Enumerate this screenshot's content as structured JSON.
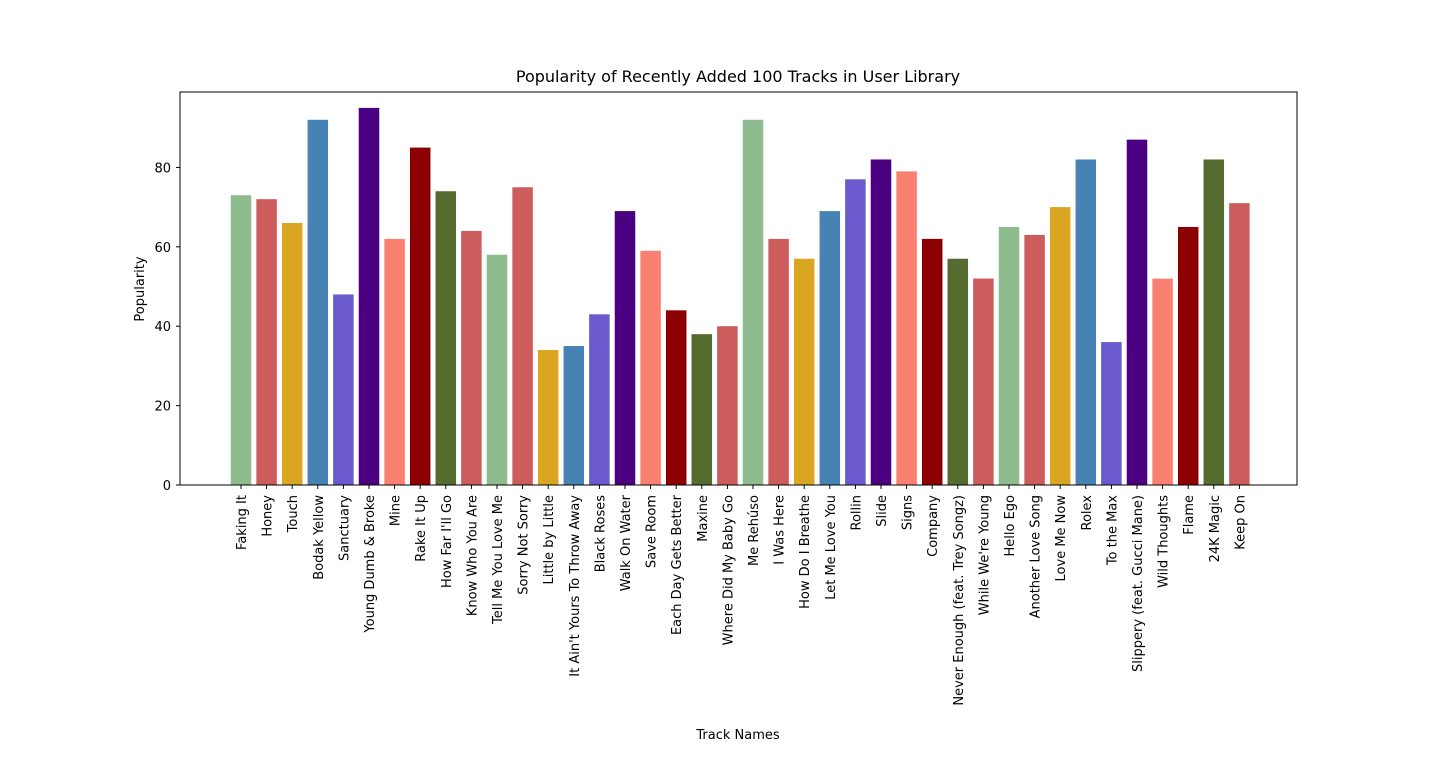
{
  "chart_data": {
    "type": "bar",
    "title": "Popularity of Recently Added 100 Tracks in User Library",
    "xlabel": "Track Names",
    "ylabel": "Popularity",
    "ylim": [
      0,
      99
    ],
    "yticks": [
      0,
      20,
      40,
      60,
      80
    ],
    "grid": false,
    "legend": "none",
    "categories": [
      "Faking It",
      "Honey",
      "Touch",
      "Bodak Yellow",
      "Sanctuary",
      "Young Dumb & Broke",
      "Mine",
      "Rake It Up",
      "How Far I'll Go",
      "Know Who You Are",
      "Tell Me You Love Me",
      "Sorry Not Sorry",
      "Little by Little",
      "It Ain't Yours To Throw Away",
      "Black Roses",
      "Walk On Water",
      "Save Room",
      "Each Day Gets Better",
      "Maxine",
      "Where Did My Baby Go",
      "Me Rehúso",
      "I Was Here",
      "How Do I Breathe",
      "Let Me Love You",
      "Rollin",
      "Slide",
      "Signs",
      "Company",
      "Never Enough (feat. Trey Songz)",
      "While We're Young",
      "Hello Ego",
      "Another Love Song",
      "Love Me Now",
      "Rolex",
      "To the Max",
      "Slippery (feat. Gucci Mane)",
      "Wild Thoughts",
      "Flame",
      "24K Magic",
      "Keep On"
    ],
    "values": [
      73,
      72,
      66,
      92,
      48,
      95,
      62,
      85,
      74,
      64,
      58,
      75,
      34,
      35,
      43,
      69,
      59,
      44,
      38,
      40,
      92,
      62,
      57,
      69,
      77,
      82,
      79,
      62,
      57,
      52,
      65,
      63,
      70,
      82,
      36,
      87,
      52,
      65,
      82,
      71
    ],
    "colors": [
      "#8fbc8f",
      "#cd5c5c",
      "#daa520",
      "#4682b4",
      "#6a5acd",
      "#4b0082",
      "#fa8072",
      "#8b0000",
      "#556b2f",
      "#cd5c5c",
      "#8fbc8f",
      "#cd5c5c",
      "#daa520",
      "#4682b4",
      "#6a5acd",
      "#4b0082",
      "#fa8072",
      "#8b0000",
      "#556b2f",
      "#cd5c5c",
      "#8fbc8f",
      "#cd5c5c",
      "#daa520",
      "#4682b4",
      "#6a5acd",
      "#4b0082",
      "#fa8072",
      "#8b0000",
      "#556b2f",
      "#cd5c5c",
      "#8fbc8f",
      "#cd5c5c",
      "#daa520",
      "#4682b4",
      "#6a5acd",
      "#4b0082",
      "#fa8072",
      "#8b0000",
      "#556b2f",
      "#cd5c5c"
    ]
  }
}
